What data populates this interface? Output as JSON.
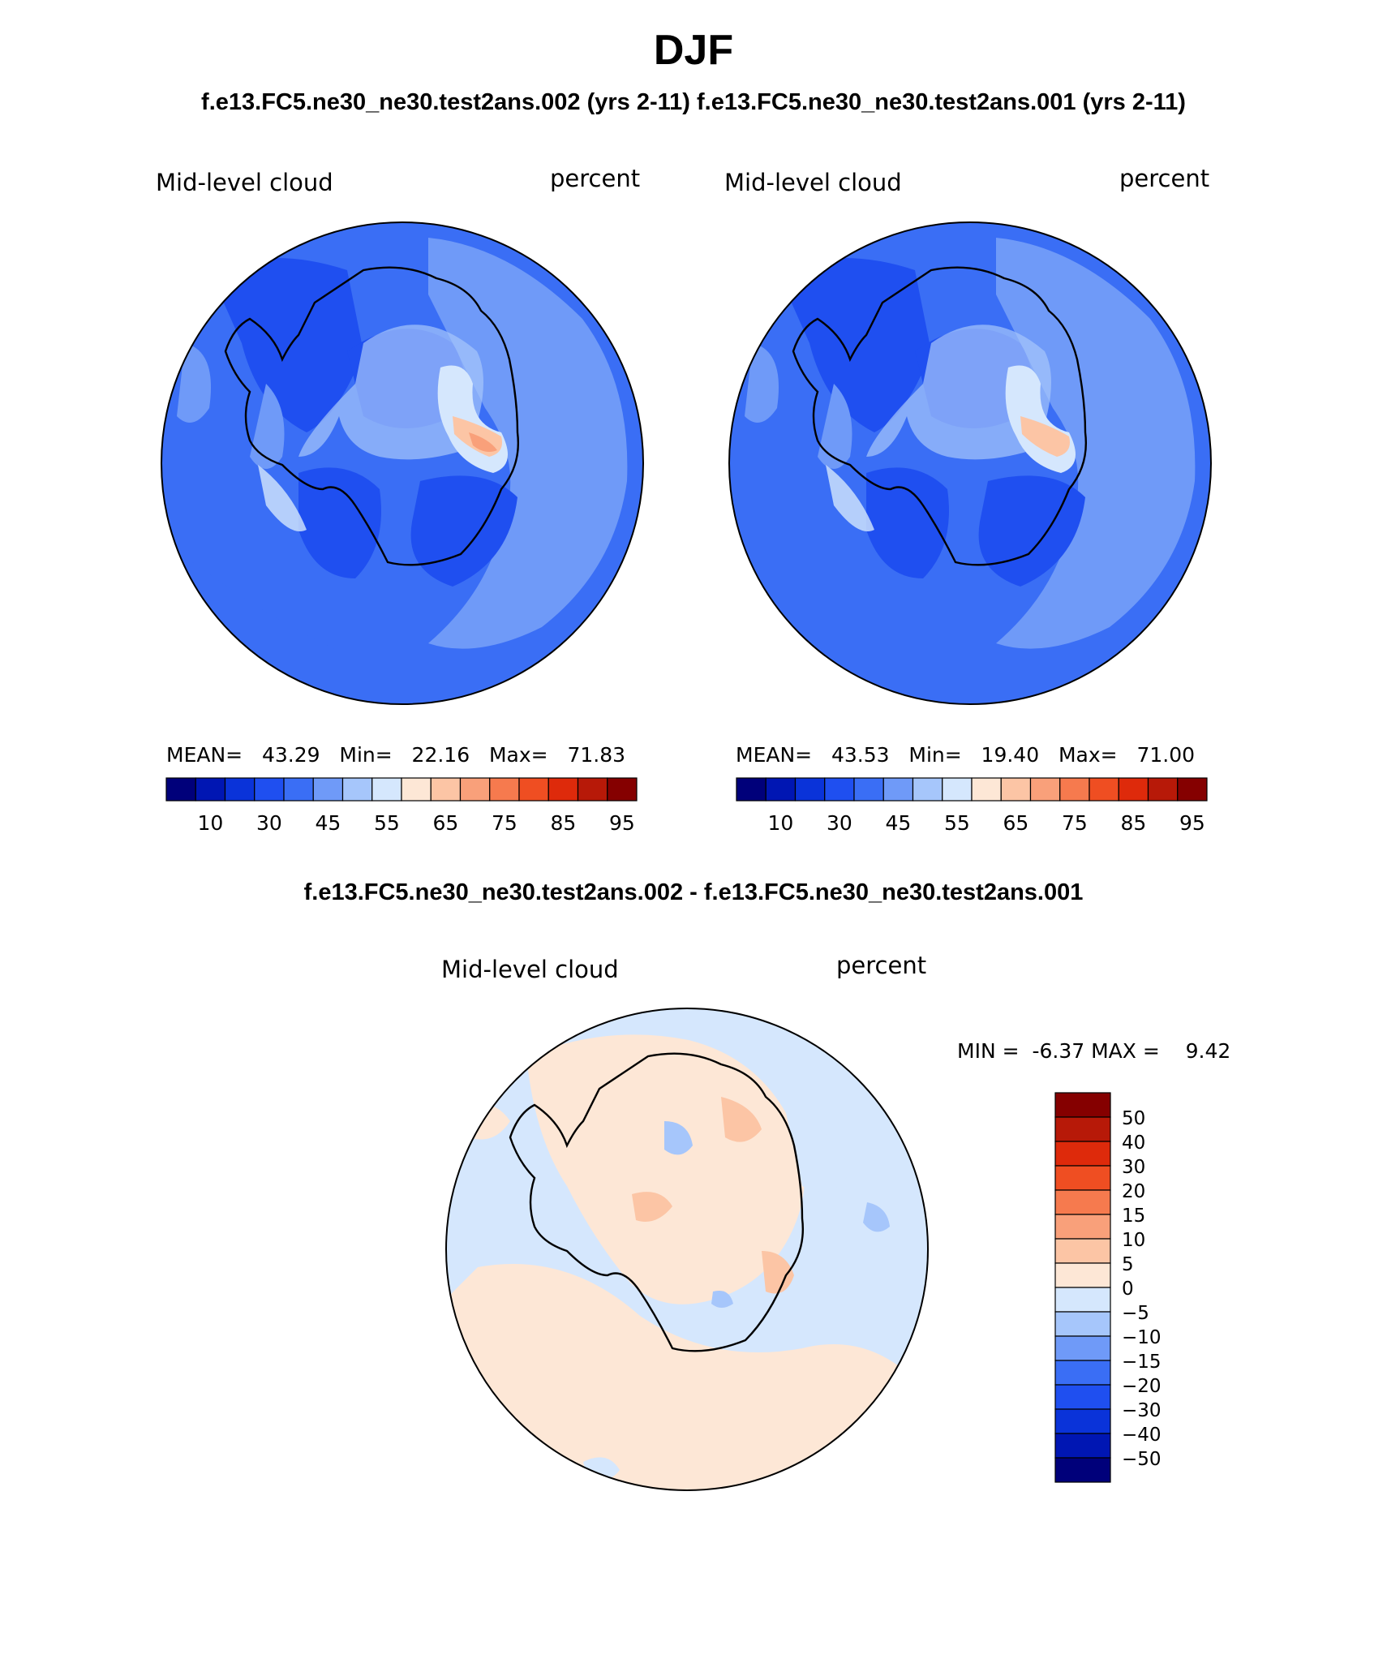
{
  "title": "DJF",
  "top_subtitle": "f.e13.FC5.ne30_ne30.test2ans.002 (yrs 2-11) f.e13.FC5.ne30_ne30.test2ans.001 (yrs 2-11)",
  "diff_subtitle": "f.e13.FC5.ne30_ne30.test2ans.002 - f.e13.FC5.ne30_ne30.test2ans.001",
  "panels": [
    {
      "field": "Mid-level cloud",
      "units": "percent",
      "mean_label": "MEAN=",
      "mean": "43.29",
      "min_label": "Min=",
      "min": "22.16",
      "max_label": "Max=",
      "max": "71.83"
    },
    {
      "field": "Mid-level cloud",
      "units": "percent",
      "mean_label": "MEAN=",
      "mean": "43.53",
      "min_label": "Min=",
      "min": "19.40",
      "max_label": "Max=",
      "max": "71.00"
    }
  ],
  "diff_panel": {
    "field": "Mid-level cloud",
    "units": "percent",
    "min_label": "MIN =",
    "min": "-6.37",
    "max_label": "MAX =",
    "max": "9.42"
  },
  "abs_colorbar": {
    "colors": [
      "#00007a",
      "#0016b3",
      "#0a33d9",
      "#1f4ff0",
      "#3a6ef5",
      "#6f9af8",
      "#a6c6fb",
      "#d5e7fd",
      "#fde7d6",
      "#fcc5a5",
      "#f9a07a",
      "#f67a4e",
      "#ef4e22",
      "#de2a0b",
      "#b71908",
      "#850000"
    ],
    "tick_labels": [
      "10",
      "30",
      "45",
      "55",
      "65",
      "75",
      "85",
      "95"
    ]
  },
  "diff_colorbar": {
    "colors": [
      "#850000",
      "#b71908",
      "#de2a0b",
      "#ef4e22",
      "#f67a4e",
      "#f9a07a",
      "#fcc5a5",
      "#fde7d6",
      "#d5e7fd",
      "#a6c6fb",
      "#6f9af8",
      "#3a6ef5",
      "#1f4ff0",
      "#0a33d9",
      "#0016b3",
      "#00007a"
    ],
    "tick_labels": [
      "50",
      "40",
      "30",
      "20",
      "15",
      "10",
      "5",
      "0",
      "−5",
      "−10",
      "−15",
      "−20",
      "−30",
      "−40",
      "−50"
    ]
  }
}
